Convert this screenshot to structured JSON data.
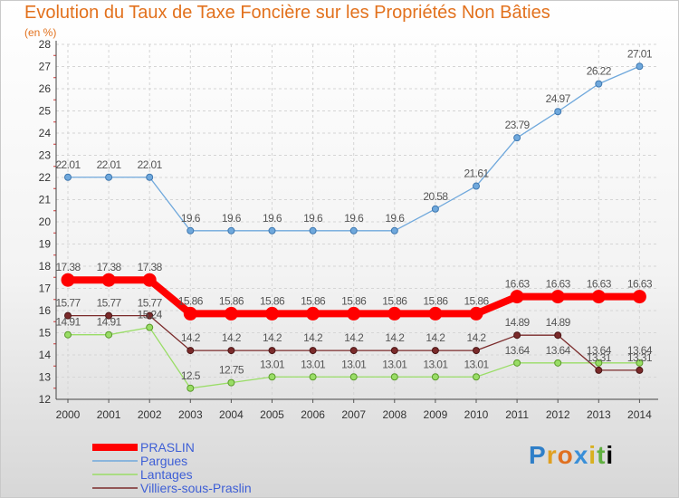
{
  "page": {
    "title": "Evolution du Taux de Taxe Foncière sur les Propriétés Non Bâties",
    "subtitle": "(en %)",
    "logo": [
      "P",
      "r",
      "o",
      "x",
      "i",
      "t",
      "i"
    ]
  },
  "chart_data": {
    "type": "line",
    "title": "Evolution du Taux de Taxe Foncière sur les Propriétés Non Bâties",
    "ylabel": "(en %)",
    "xlabel": "",
    "x": [
      "2000",
      "2001",
      "2002",
      "2003",
      "2004",
      "2005",
      "2006",
      "2007",
      "2008",
      "2009",
      "2010",
      "2011",
      "2012",
      "2013",
      "2014"
    ],
    "ylim": [
      12,
      28
    ],
    "yticks": [
      12,
      13,
      14,
      15,
      16,
      17,
      18,
      19,
      20,
      21,
      22,
      23,
      24,
      25,
      26,
      27,
      28
    ],
    "grid": true,
    "legend": "bottom-left",
    "series": [
      {
        "name": "PRASLIN",
        "color": "#ff0000",
        "values": [
          17.38,
          17.38,
          17.38,
          15.86,
          15.86,
          15.86,
          15.86,
          15.86,
          15.86,
          15.86,
          15.86,
          16.63,
          16.63,
          16.63,
          16.63
        ],
        "labels": [
          "17.38",
          "17.38",
          "17.38",
          "15.86",
          "15.86",
          "15.86",
          "15.86",
          "15.86",
          "15.86",
          "15.86",
          "15.86",
          "16.63",
          "16.63",
          "16.63",
          "16.63"
        ]
      },
      {
        "name": "Pargues",
        "color": "#6fa8dc",
        "values": [
          22.01,
          22.01,
          22.01,
          19.6,
          19.6,
          19.6,
          19.6,
          19.6,
          19.6,
          20.58,
          21.61,
          23.79,
          24.97,
          26.22,
          27.01
        ],
        "labels": [
          "22.01",
          "22.01",
          "22.01",
          "19.6",
          "19.6",
          "19.6",
          "19.6",
          "19.6",
          "19.6",
          "20.58",
          "21.61",
          "23.79",
          "24.97",
          "26.22",
          "27.01"
        ]
      },
      {
        "name": "Lantages",
        "color": "#99dd66",
        "values": [
          14.91,
          14.91,
          15.24,
          12.5,
          12.75,
          13.01,
          13.01,
          13.01,
          13.01,
          13.01,
          13.01,
          13.64,
          13.64,
          13.64,
          13.64
        ],
        "labels": [
          "14.91",
          "14.91",
          "15.24",
          "12.5",
          "12.75",
          "13.01",
          "13.01",
          "13.01",
          "13.01",
          "13.01",
          "13.01",
          "13.64",
          "13.64",
          "13.64",
          "13.64"
        ]
      },
      {
        "name": "Villiers-sous-Praslin",
        "color": "#7a2a2a",
        "values": [
          15.77,
          15.77,
          15.77,
          14.2,
          14.2,
          14.2,
          14.2,
          14.2,
          14.2,
          14.2,
          14.2,
          14.89,
          14.89,
          13.31,
          13.31
        ],
        "labels": [
          "15.77",
          "15.77",
          "15.77",
          "14.2",
          "14.2",
          "14.2",
          "14.2",
          "14.2",
          "14.2",
          "14.2",
          "14.2",
          "14.89",
          "14.89",
          "13.31",
          "13.31"
        ]
      }
    ]
  }
}
